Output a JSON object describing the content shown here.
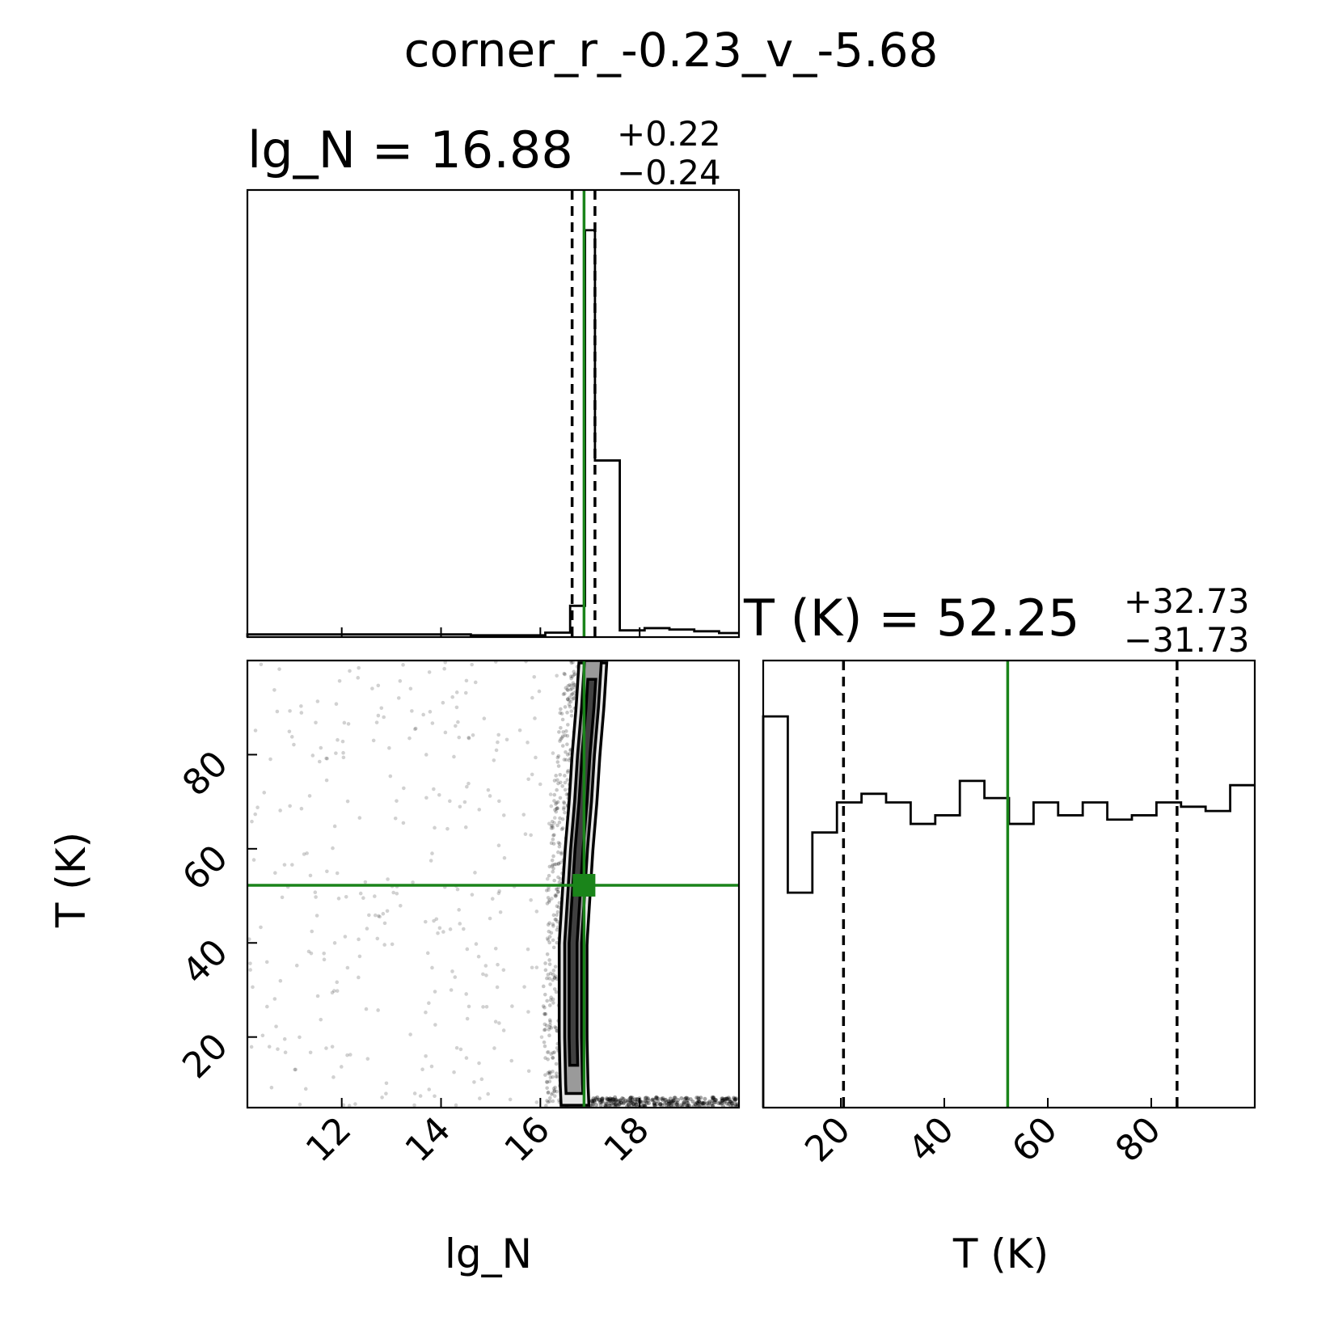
{
  "figure": {
    "title": "corner_r_-0.23_v_-5.68"
  },
  "chart_data": {
    "type": "corner",
    "parameters": [
      {
        "name": "lg_N",
        "axis_label": "lg_N",
        "range": [
          10.1,
          20.0
        ],
        "ticks": [
          12,
          14,
          16,
          18
        ],
        "tick_labels": [
          "12",
          "14",
          "16",
          "18"
        ],
        "title_main": "lg_N = 16.88",
        "median": 16.88,
        "err_plus_label": "+0.22",
        "err_minus_label": "−0.24",
        "q16": 16.64,
        "q84": 17.1,
        "hist_edges": [
          10.1,
          10.6,
          11.1,
          11.6,
          12.1,
          12.6,
          13.1,
          13.6,
          14.1,
          14.6,
          15.1,
          15.6,
          16.1,
          16.6,
          16.9,
          17.1,
          17.6,
          18.1,
          18.6,
          19.1,
          19.6,
          20.0
        ],
        "hist_counts": [
          0.6,
          0.6,
          0.6,
          0.6,
          0.6,
          0.6,
          0.6,
          0.6,
          0.6,
          0.4,
          0.4,
          0.4,
          1.0,
          7.0,
          91.0,
          39.5,
          1.5,
          2.0,
          1.7,
          1.3,
          0.9
        ]
      },
      {
        "name": "T (K)",
        "axis_label": "T (K)",
        "range": [
          5,
          100
        ],
        "ticks": [
          20,
          40,
          60,
          80
        ],
        "tick_labels": [
          "20",
          "40",
          "60",
          "80"
        ],
        "title_main": "T (K) = 52.25",
        "median": 52.25,
        "err_plus_label": "+32.73",
        "err_minus_label": "−31.73",
        "q16": 20.52,
        "q84": 84.98,
        "hist_edges": [
          5,
          9.75,
          14.5,
          19.25,
          24,
          28.75,
          33.5,
          38.25,
          43,
          47.75,
          52.5,
          57.25,
          62,
          66.75,
          71.5,
          76.25,
          81,
          85.75,
          90.5,
          95.25,
          100
        ],
        "hist_counts": [
          91,
          50,
          64,
          71,
          73,
          71,
          66,
          68,
          76,
          72,
          66,
          71,
          68,
          71,
          67,
          68,
          71,
          70,
          69,
          75
        ]
      }
    ],
    "joint": {
      "x": "lg_N",
      "y": "T (K)",
      "ridge_center_y": [
        5,
        10,
        20,
        30,
        40,
        50,
        60,
        70,
        80,
        90,
        100
      ],
      "ridge_center_x": [
        16.7,
        16.68,
        16.66,
        16.66,
        16.66,
        16.72,
        16.78,
        16.86,
        16.92,
        17.0,
        17.06
      ]
    },
    "truth_color": "#1a841a",
    "line_color": "#000000"
  }
}
